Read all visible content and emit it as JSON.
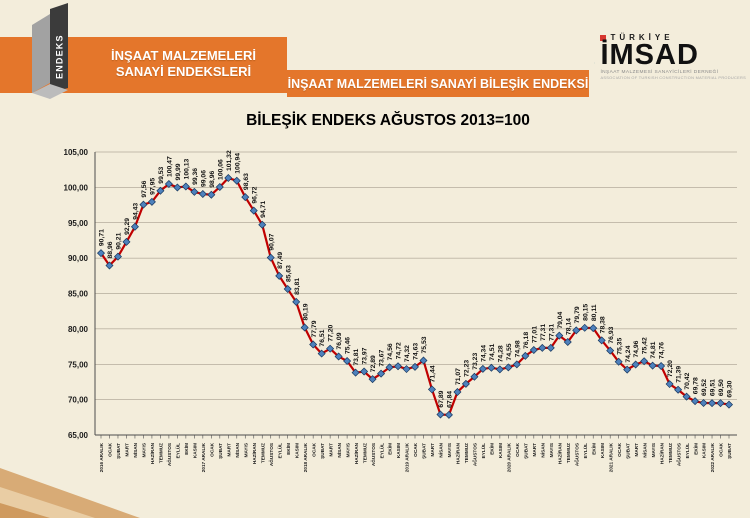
{
  "page": {
    "background": "#F3EDDB"
  },
  "header": {
    "left_band": {
      "line1": "İNŞAAT MALZEMELERİ",
      "line2": "SANAYİ ENDEKSLERİ",
      "bg": "#E4762B"
    },
    "right_band": {
      "label": "İNŞAAT MALZEMELERİ SANAYİ BİLEŞİK ENDEKSİ",
      "bg": "#E4762B"
    },
    "endeks_logo": {
      "text": "ENDEKS"
    },
    "imsad_logo": {
      "country": "TÜRKİYE",
      "name": "İMSAD",
      "sub_tr": "İNŞAAT MALZEMESİ SANAYİCİLERİ DERNEĞİ",
      "sub_en": "ASSOCIATION OF TURKISH CONSTRUCTION MATERIAL PRODUCERS"
    }
  },
  "chart_data": {
    "type": "line",
    "title": "BİLEŞİK ENDEKS AĞUSTOS 2013=100",
    "ylim": [
      65,
      105
    ],
    "y_ticks": [
      "105,00",
      "100,00",
      "95,00",
      "90,00",
      "85,00",
      "80,00",
      "75,00",
      "70,00",
      "65,00"
    ],
    "grid": true,
    "legend": "none",
    "decimal_separator": ",",
    "line_color": "#C00000",
    "marker_color": "#4E81BC",
    "marker_edge": "#17375E",
    "x": [
      "2016 ARALIK",
      "OCAK",
      "ŞUBAT",
      "MART",
      "NİSAN",
      "MAYIS",
      "HAZİRAN",
      "TEMMUZ",
      "AĞUSTOS",
      "EYLÜL",
      "EKİM",
      "KASIM",
      "2017 ARALIK",
      "OCAK",
      "ŞUBAT",
      "MART",
      "NİSAN",
      "MAYIS",
      "HAZİRAN",
      "TEMMUZ",
      "AĞUSTOS",
      "EYLÜL",
      "EKİM",
      "KASIM",
      "2018 ARALIK",
      "OCAK",
      "ŞUBAT",
      "MART",
      "NİSAN",
      "MAYIS",
      "HAZİRAN",
      "TEMMUZ",
      "AĞUSTOS",
      "EYLÜL",
      "EKİM",
      "KASIM",
      "2019 ARALIK",
      "OCAK",
      "ŞUBAT",
      "MART",
      "NİSAN",
      "MAYIS",
      "HAZİRAN",
      "TEMMUZ",
      "AĞUSTOS",
      "EYLÜL",
      "EKİM",
      "KASIM",
      "2020 ARALIK",
      "OCAK",
      "ŞUBAT",
      "MART",
      "NİSAN",
      "MAYIS",
      "HAZİRAN",
      "TEMMUZ",
      "AĞUSTOS",
      "EYLÜL",
      "EKİM",
      "KASIM",
      "2021 ARALIK",
      "OCAK",
      "ŞUBAT",
      "MART",
      "NİSAN",
      "MAYIS",
      "HAZİRAN",
      "TEMMUZ",
      "AĞUSTOS",
      "EYLÜL",
      "EKİM",
      "KASIM",
      "2022 ARALIK",
      "OCAK",
      "ŞUBAT"
    ],
    "values": [
      90.71,
      88.96,
      90.21,
      92.29,
      94.43,
      97.56,
      97.95,
      99.53,
      100.47,
      99.99,
      100.13,
      99.36,
      99.06,
      98.96,
      100.06,
      101.32,
      100.94,
      98.63,
      96.72,
      94.71,
      90.07,
      87.49,
      85.63,
      83.81,
      80.19,
      77.79,
      76.51,
      77.2,
      76.09,
      75.46,
      73.81,
      73.97,
      72.89,
      73.67,
      74.56,
      74.72,
      74.32,
      74.63,
      75.53,
      71.44,
      67.89,
      67.84,
      71.07,
      72.23,
      73.23,
      74.34,
      74.51,
      74.28,
      74.55,
      74.98,
      76.18,
      77.01,
      77.31,
      77.31,
      79.04,
      78.14,
      79.79,
      80.15,
      80.11,
      78.38,
      76.93,
      75.35,
      74.24,
      74.96,
      75.42,
      74.81,
      74.76,
      72.2,
      71.39,
      70.42,
      69.78,
      69.52,
      69.51,
      69.5,
      69.3
    ]
  }
}
